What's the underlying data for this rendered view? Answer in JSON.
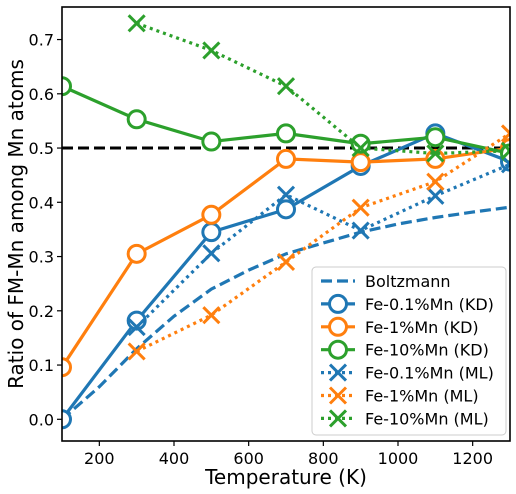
{
  "chart_data": {
    "type": "line",
    "xlabel": "Temperature (K)",
    "ylabel": "Ratio of FM-Mn among Mn atoms",
    "xlim": [
      100,
      1300
    ],
    "ylim": [
      -0.04,
      0.76
    ],
    "xticks": [
      200,
      400,
      600,
      800,
      1000,
      1200
    ],
    "yticks": [
      0.0,
      0.1,
      0.2,
      0.3,
      0.4,
      0.5,
      0.6,
      0.7
    ],
    "grid": false,
    "legend_position": "bottom-right",
    "reference_line": {
      "y": 0.5,
      "style": "dashed",
      "color": "#000000"
    },
    "series": [
      {
        "name": "Boltzmann",
        "color": "#1f77b4",
        "line": "dashed",
        "marker": "none",
        "x": [
          100,
          200,
          300,
          400,
          500,
          600,
          700,
          800,
          900,
          1000,
          1100,
          1200,
          1300
        ],
        "y": [
          0.0,
          0.06,
          0.13,
          0.19,
          0.24,
          0.275,
          0.305,
          0.325,
          0.345,
          0.36,
          0.372,
          0.382,
          0.391
        ]
      },
      {
        "name": "Fe-0.1%Mn (KD)",
        "color": "#1f77b4",
        "line": "solid",
        "marker": "circle",
        "x": [
          100,
          300,
          500,
          700,
          900,
          1100,
          1300
        ],
        "y": [
          0.0,
          0.182,
          0.345,
          0.387,
          0.467,
          0.527,
          0.475
        ]
      },
      {
        "name": "Fe-1%Mn (KD)",
        "color": "#ff7f0e",
        "line": "solid",
        "marker": "circle",
        "x": [
          100,
          300,
          500,
          700,
          900,
          1100,
          1300
        ],
        "y": [
          0.096,
          0.305,
          0.377,
          0.48,
          0.474,
          0.48,
          0.5
        ]
      },
      {
        "name": "Fe-10%Mn (KD)",
        "color": "#2ca02c",
        "line": "solid",
        "marker": "circle",
        "x": [
          100,
          300,
          500,
          700,
          900,
          1100,
          1300
        ],
        "y": [
          0.614,
          0.553,
          0.512,
          0.527,
          0.508,
          0.52,
          0.49
        ]
      },
      {
        "name": "Fe-0.1%Mn (ML)",
        "color": "#1f77b4",
        "line": "dotted",
        "marker": "x",
        "x": [
          300,
          500,
          700,
          900,
          1100,
          1300
        ],
        "y": [
          0.17,
          0.306,
          0.414,
          0.348,
          0.412,
          0.47
        ]
      },
      {
        "name": "Fe-1%Mn (ML)",
        "color": "#ff7f0e",
        "line": "dotted",
        "marker": "x",
        "x": [
          300,
          500,
          700,
          900,
          1100,
          1300
        ],
        "y": [
          0.125,
          0.192,
          0.29,
          0.39,
          0.438,
          0.527
        ]
      },
      {
        "name": "Fe-10%Mn (ML)",
        "color": "#2ca02c",
        "line": "dotted",
        "marker": "x",
        "x": [
          300,
          500,
          700,
          900,
          1100,
          1300
        ],
        "y": [
          0.73,
          0.68,
          0.614,
          0.5,
          0.49,
          0.495
        ]
      }
    ]
  }
}
